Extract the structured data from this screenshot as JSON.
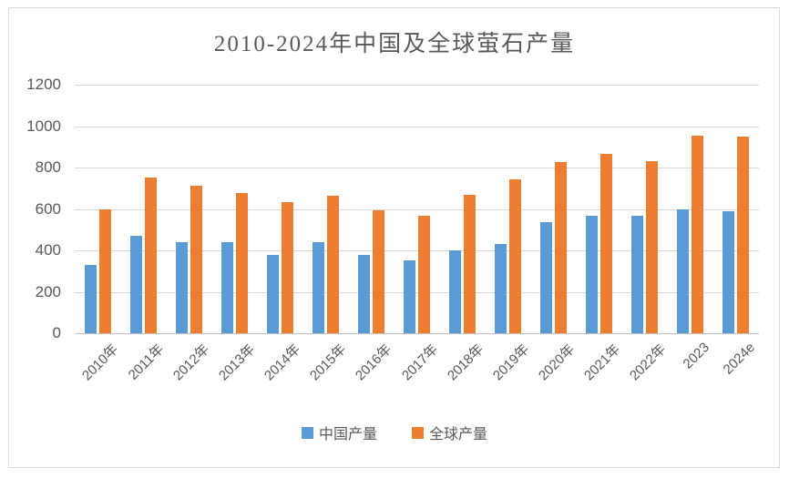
{
  "chart_data": {
    "type": "bar",
    "title": "2010-2024年中国及全球萤石产量",
    "xlabel": "",
    "ylabel": "",
    "categories": [
      "2010年",
      "2011年",
      "2012年",
      "2013年",
      "2014年",
      "2015年",
      "2016年",
      "2017年",
      "2018年",
      "2019年",
      "2020年",
      "2021年",
      "2022年",
      "2023",
      "2024e"
    ],
    "series": [
      {
        "id": "china",
        "name": "中国产量",
        "color": "#5B9BD5",
        "values": [
          330,
          470,
          440,
          440,
          380,
          440,
          380,
          350,
          400,
          430,
          535,
          565,
          565,
          600,
          590
        ]
      },
      {
        "id": "global",
        "name": "全球产量",
        "color": "#ED7D31",
        "values": [
          600,
          750,
          710,
          675,
          635,
          665,
          595,
          565,
          670,
          745,
          825,
          865,
          830,
          955,
          950
        ]
      }
    ],
    "ylim": [
      0,
      1200
    ],
    "yticks": [
      0,
      200,
      400,
      600,
      800,
      1000,
      1200
    ],
    "grid": true,
    "legend_position": "bottom"
  },
  "colors": {
    "background": "#FFFFFF",
    "border": "#D9D9D9",
    "gridline": "#D9D9D9",
    "axis_line": "#BFBFBF",
    "text": "#595959",
    "series_china": "#5B9BD5",
    "series_global": "#ED7D31"
  }
}
